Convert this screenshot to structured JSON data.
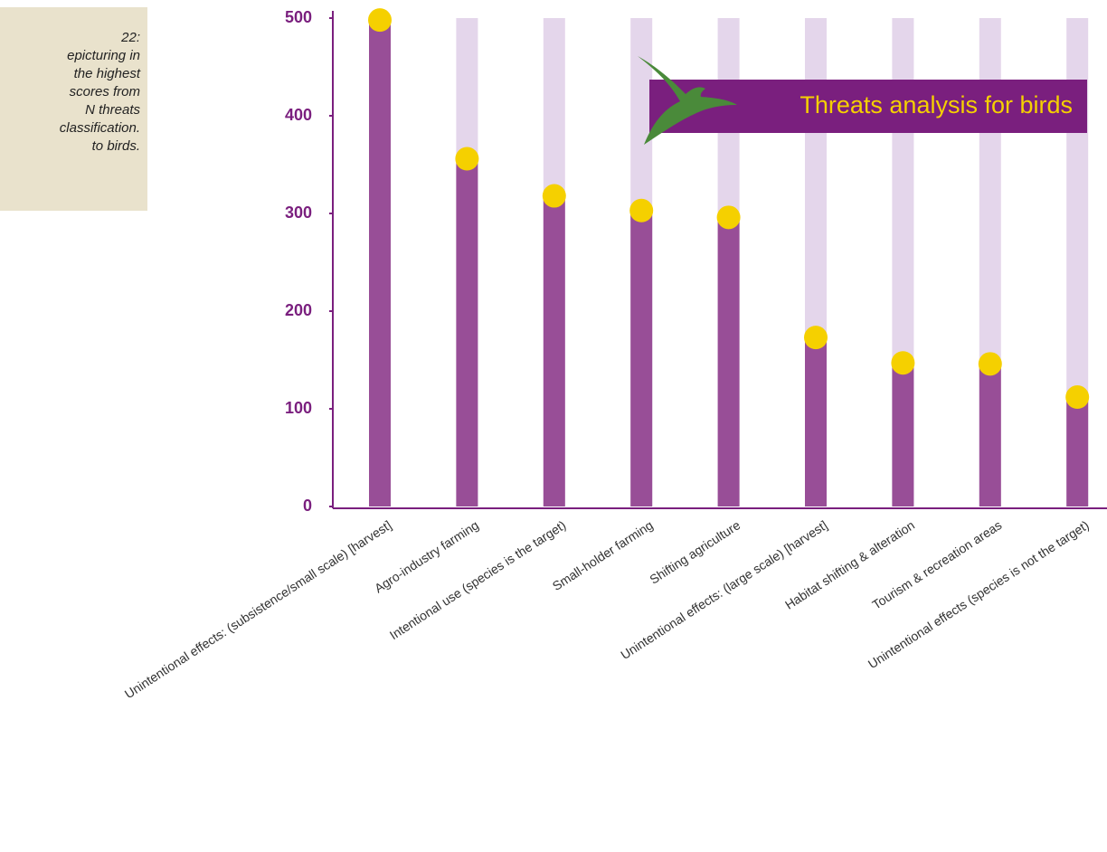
{
  "caption": {
    "lines": [
      "22:",
      "epicturing in",
      "the highest",
      "scores from",
      "N threats",
      "classification.",
      "to birds."
    ]
  },
  "chart_data": {
    "type": "bar",
    "title": "Threats analysis for birds",
    "categories": [
      "Unintentional effects: (subsistence/small scale) [harvest]",
      "Agro-industry farming",
      "Intentional use (species is the target)",
      "Small-holder farming",
      "Shifting agriculture",
      "Unintentional effects: (large scale) [harvest]",
      "Habitat shifting & alteration",
      "Tourism & recreation areas",
      "Unintentional effects (species is not the target)"
    ],
    "values": [
      498,
      356,
      318,
      303,
      296,
      173,
      147,
      146,
      112
    ],
    "color": "#984e97",
    "marker_color": "#f5d000",
    "track_color": "#e4d6eb",
    "axis_color": "#7a1f7e",
    "ylim": [
      0,
      500
    ],
    "yticks": [
      0,
      100,
      200,
      300,
      400,
      500
    ],
    "grid": false
  }
}
